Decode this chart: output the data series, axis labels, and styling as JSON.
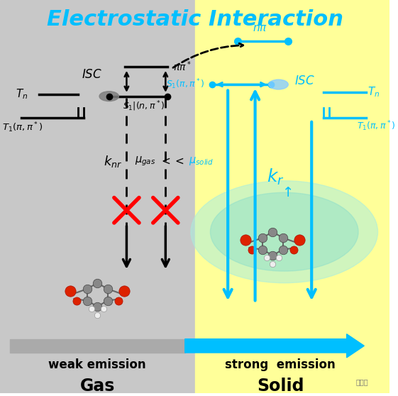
{
  "title": "Electrostatic Interaction",
  "title_color": "#00BFFF",
  "title_fontsize": 22,
  "bg_left": "#C8C8C8",
  "bg_right": "#FFFF99",
  "arrow_color": "#00BFFF",
  "label_gas": "Gas",
  "label_solid": "Solid",
  "label_weak": "weak emission",
  "label_strong": "strong  emission",
  "watermark": "泰科技"
}
